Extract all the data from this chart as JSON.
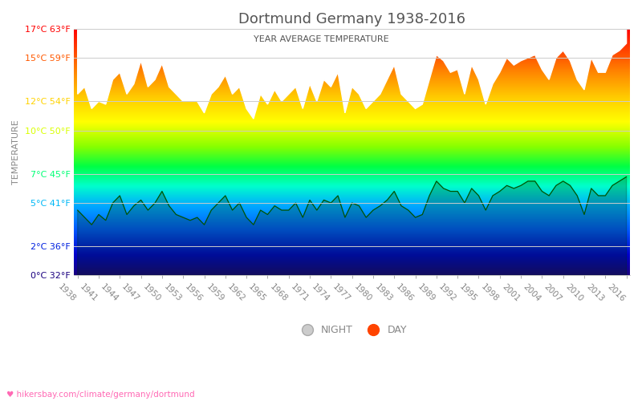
{
  "title": "Dortmund Germany 1938-2016",
  "subtitle": "YEAR AVERAGE TEMPERATURE",
  "ylabel": "TEMPERATURE",
  "watermark": "♥ hikersbay.com/climate/germany/dortmund",
  "ylim": [
    0,
    17
  ],
  "yticks_c": [
    0,
    2,
    5,
    7,
    10,
    12,
    15,
    17
  ],
  "yticks_f": [
    32,
    36,
    41,
    45,
    50,
    54,
    59,
    63
  ],
  "years": [
    1938,
    1939,
    1940,
    1941,
    1942,
    1943,
    1944,
    1945,
    1946,
    1947,
    1948,
    1949,
    1950,
    1951,
    1952,
    1953,
    1954,
    1955,
    1956,
    1957,
    1958,
    1959,
    1960,
    1961,
    1962,
    1963,
    1964,
    1965,
    1966,
    1967,
    1968,
    1969,
    1970,
    1971,
    1972,
    1973,
    1974,
    1975,
    1976,
    1977,
    1978,
    1979,
    1980,
    1981,
    1982,
    1983,
    1984,
    1985,
    1986,
    1987,
    1988,
    1989,
    1990,
    1991,
    1992,
    1993,
    1994,
    1995,
    1996,
    1997,
    1998,
    1999,
    2000,
    2001,
    2002,
    2003,
    2004,
    2005,
    2006,
    2007,
    2008,
    2009,
    2010,
    2011,
    2012,
    2013,
    2014,
    2015,
    2016
  ],
  "day_temps": [
    12.5,
    13.0,
    11.5,
    12.0,
    11.8,
    13.5,
    14.0,
    12.5,
    13.2,
    14.8,
    13.0,
    13.5,
    14.6,
    13.0,
    12.5,
    12.0,
    12.0,
    12.0,
    11.2,
    12.5,
    13.0,
    13.8,
    12.5,
    13.0,
    11.5,
    10.8,
    12.5,
    11.8,
    12.8,
    12.0,
    12.5,
    13.0,
    11.5,
    13.2,
    12.0,
    13.5,
    13.0,
    14.0,
    11.2,
    13.0,
    12.5,
    11.5,
    12.0,
    12.5,
    13.5,
    14.5,
    12.5,
    12.0,
    11.5,
    11.8,
    13.5,
    15.2,
    14.8,
    14.0,
    14.2,
    12.5,
    14.5,
    13.5,
    11.8,
    13.2,
    14.0,
    15.0,
    14.5,
    14.8,
    15.0,
    15.2,
    14.2,
    13.5,
    15.0,
    15.5,
    14.8,
    13.5,
    12.8,
    15.0,
    14.0,
    14.0,
    15.2,
    15.5,
    16.0
  ],
  "night_temps": [
    4.5,
    4.0,
    3.5,
    4.2,
    3.8,
    5.0,
    5.5,
    4.2,
    4.8,
    5.2,
    4.5,
    5.0,
    5.8,
    4.8,
    4.2,
    4.0,
    3.8,
    4.0,
    3.5,
    4.5,
    5.0,
    5.5,
    4.5,
    5.0,
    4.0,
    3.5,
    4.5,
    4.2,
    4.8,
    4.5,
    4.5,
    5.0,
    4.0,
    5.2,
    4.5,
    5.2,
    5.0,
    5.5,
    4.0,
    5.0,
    4.8,
    4.0,
    4.5,
    4.8,
    5.2,
    5.8,
    4.8,
    4.5,
    4.0,
    4.2,
    5.5,
    6.5,
    6.0,
    5.8,
    5.8,
    5.0,
    6.0,
    5.5,
    4.5,
    5.5,
    5.8,
    6.2,
    6.0,
    6.2,
    6.5,
    6.5,
    5.8,
    5.5,
    6.2,
    6.5,
    6.2,
    5.5,
    4.2,
    6.0,
    5.5,
    5.5,
    6.2,
    6.5,
    6.8
  ],
  "background_color": "#ffffff",
  "grid_color": "#cccccc",
  "title_color": "#555555",
  "subtitle_color": "#555555",
  "ylabel_color": "#888888",
  "tick_color": "#888888",
  "watermark_color": "#ff69b4"
}
